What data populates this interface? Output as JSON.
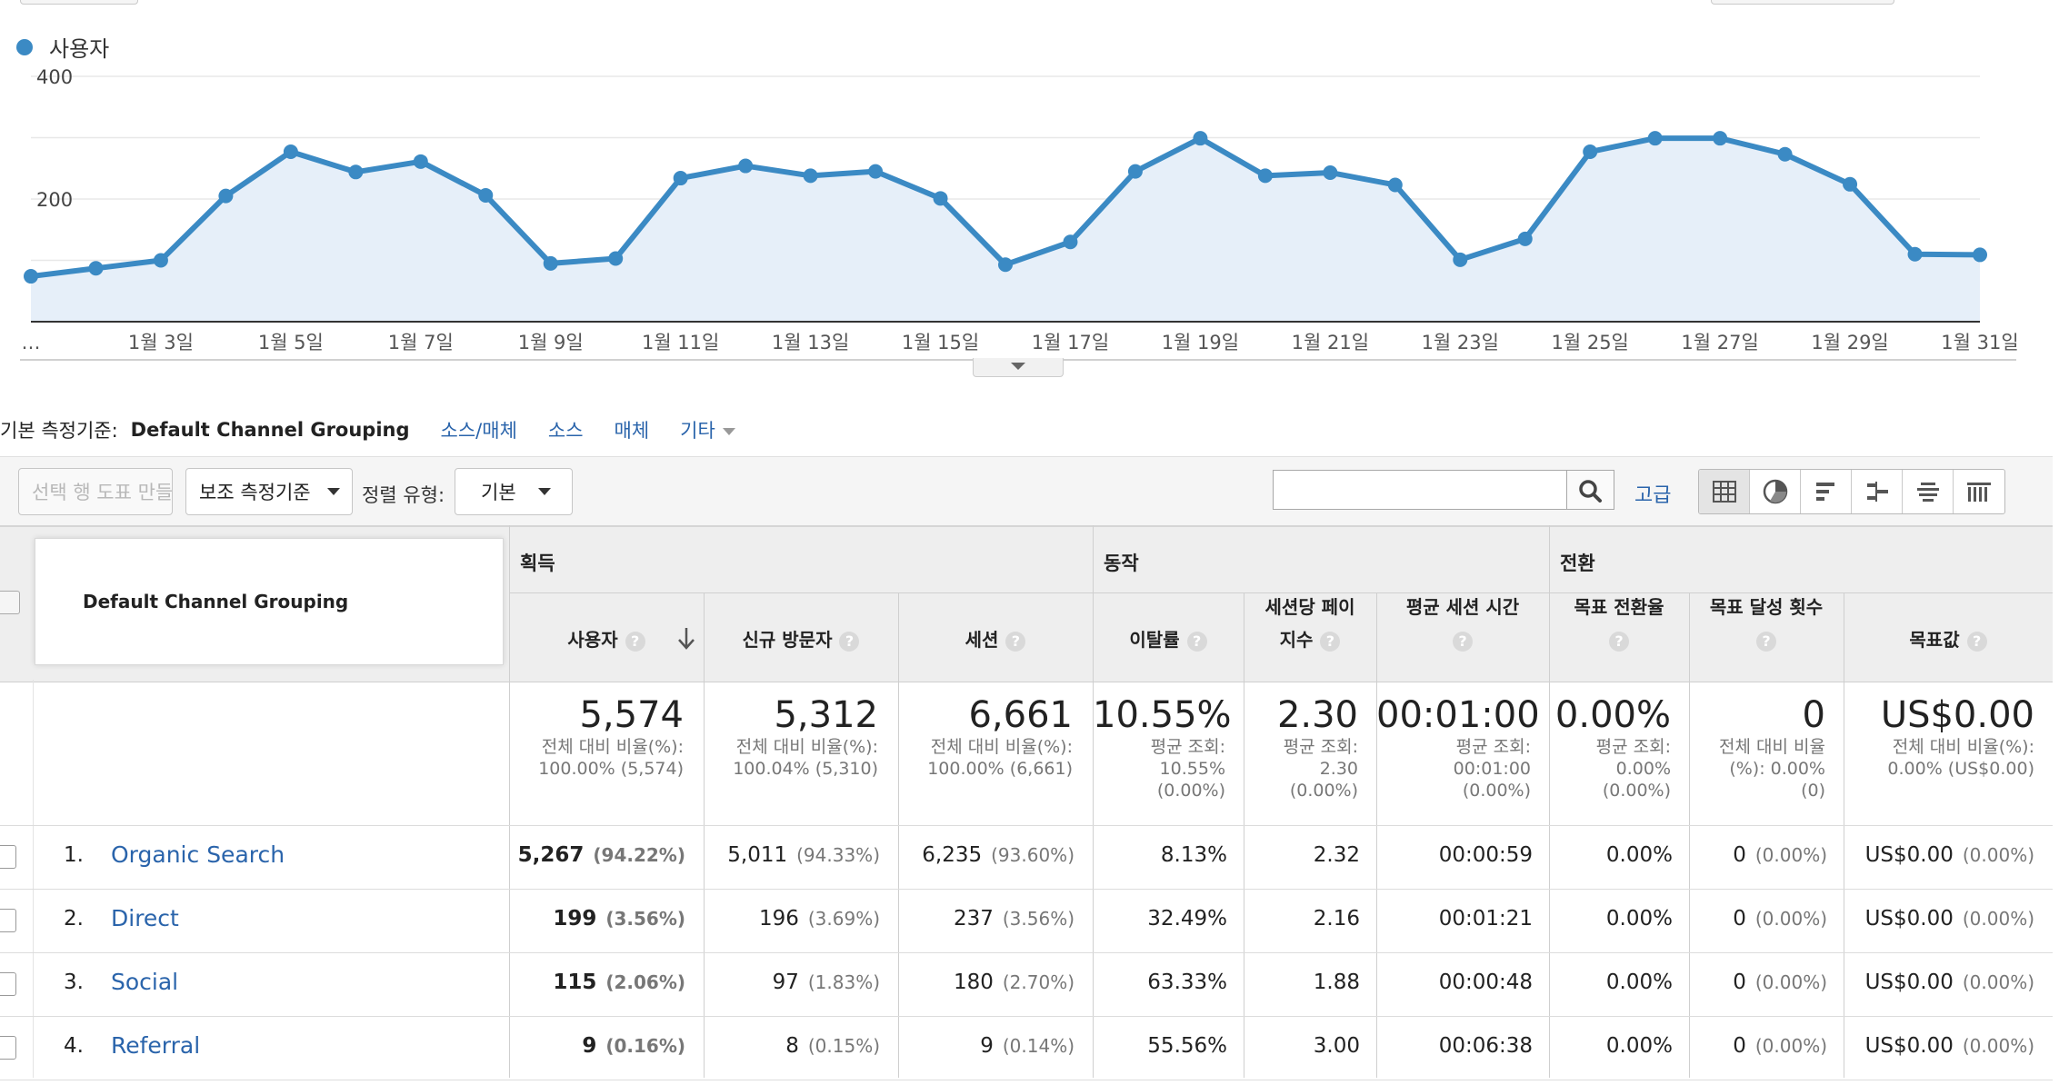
{
  "legend": {
    "label": "사용자",
    "color": "#3b8ac4"
  },
  "chart_data": {
    "type": "area",
    "series": [
      {
        "name": "사용자",
        "values": [
          74,
          87,
          100,
          205,
          277,
          244,
          261,
          206,
          95,
          103,
          234,
          254,
          238,
          245,
          201,
          93,
          130,
          245,
          299,
          238,
          243,
          223,
          101,
          135,
          277,
          299,
          299,
          273,
          224,
          110,
          109
        ]
      }
    ],
    "x": [
      "1월 1일",
      "1월 2일",
      "1월 3일",
      "1월 4일",
      "1월 5일",
      "1월 6일",
      "1월 7일",
      "1월 8일",
      "1월 9일",
      "1월 10일",
      "1월 11일",
      "1월 12일",
      "1월 13일",
      "1월 14일",
      "1월 15일",
      "1월 16일",
      "1월 17일",
      "1월 18일",
      "1월 19일",
      "1월 20일",
      "1월 21일",
      "1월 22일",
      "1월 23일",
      "1월 24일",
      "1월 25일",
      "1월 26일",
      "1월 27일",
      "1월 28일",
      "1월 29일",
      "1월 30일",
      "1월 31일"
    ],
    "xtick_labels": [
      "…",
      "1월 3일",
      "1월 5일",
      "1월 7일",
      "1월 9일",
      "1월 11일",
      "1월 13일",
      "1월 15일",
      "1월 17일",
      "1월 19일",
      "1월 21일",
      "1월 23일",
      "1월 25일",
      "1월 27일",
      "1월 29일",
      "1월 31일"
    ],
    "ytick_labels": [
      "400",
      "200"
    ],
    "yticks": [
      400,
      200
    ],
    "ylim": [
      0,
      400
    ],
    "grid": true,
    "line_color": "#3b8ac4",
    "fill_color": "#e6eff9"
  },
  "dimensions": {
    "label": "기본 측정기준:",
    "current": "Default Channel Grouping",
    "links": [
      "소스/매체",
      "소스",
      "매체"
    ],
    "more": "기타"
  },
  "toolbar": {
    "plot_rows": "선택 행 도표 만들기",
    "secondary_dim": "보조 측정기준",
    "sort_label": "정렬 유형:",
    "sort_value": "기본",
    "search_placeholder": "",
    "advanced": "고급"
  },
  "table": {
    "dim_header": "Default Channel Grouping",
    "groups": {
      "acquisition": "획득",
      "behavior": "동작",
      "conversion": "전환"
    },
    "columns": {
      "users": "사용자",
      "new_users": "신규 방문자",
      "sessions": "세션",
      "bounce": "이탈률",
      "pages_l1": "세션당 페이",
      "pages_l2": "지수",
      "duration": "평균 세션 시간",
      "goal_rate": "목표 전환율",
      "goal_completions": "목표 달성 횟수",
      "goal_value": "목표값"
    },
    "help_glyph": "?",
    "totals": {
      "users": {
        "value": "5,574",
        "l1": "전체 대비 비율(%):",
        "l2": "100.00% (5,574)"
      },
      "new_users": {
        "value": "5,312",
        "l1": "전체 대비 비율(%):",
        "l2": "100.04% (5,310)"
      },
      "sessions": {
        "value": "6,661",
        "l1": "전체 대비 비율(%):",
        "l2": "100.00% (6,661)"
      },
      "bounce": {
        "value": "10.55%",
        "l1": "평균 조회:",
        "l2": "10.55%",
        "l3": "(0.00%)"
      },
      "pages": {
        "value": "2.30",
        "l1": "평균 조회:",
        "l2": "2.30",
        "l3": "(0.00%)"
      },
      "duration": {
        "value": "00:01:00",
        "l1": "평균 조회:",
        "l2": "00:01:00",
        "l3": "(0.00%)"
      },
      "goal_rate": {
        "value": "0.00%",
        "l1": "평균 조회:",
        "l2": "0.00%",
        "l3": "(0.00%)"
      },
      "goal_completions": {
        "value": "0",
        "l1": "전체 대비 비율",
        "l2": "(%): 0.00%",
        "l3": "(0)"
      },
      "goal_value": {
        "value": "US$0.00",
        "l1": "전체 대비 비율(%):",
        "l2": "0.00% (US$0.00)"
      }
    },
    "rows": [
      {
        "num": "1.",
        "name": "Organic Search",
        "users": "5,267",
        "users_pct": "(94.22%)",
        "new_users": "5,011",
        "new_users_pct": "(94.33%)",
        "sessions": "6,235",
        "sessions_pct": "(93.60%)",
        "bounce": "8.13%",
        "pages": "2.32",
        "duration": "00:00:59",
        "goal_rate": "0.00%",
        "goal_completions": "0",
        "goal_completions_pct": "(0.00%)",
        "goal_value": "US$0.00",
        "goal_value_pct": "(0.00%)"
      },
      {
        "num": "2.",
        "name": "Direct",
        "users": "199",
        "users_pct": "(3.56%)",
        "new_users": "196",
        "new_users_pct": "(3.69%)",
        "sessions": "237",
        "sessions_pct": "(3.56%)",
        "bounce": "32.49%",
        "pages": "2.16",
        "duration": "00:01:21",
        "goal_rate": "0.00%",
        "goal_completions": "0",
        "goal_completions_pct": "(0.00%)",
        "goal_value": "US$0.00",
        "goal_value_pct": "(0.00%)"
      },
      {
        "num": "3.",
        "name": "Social",
        "users": "115",
        "users_pct": "(2.06%)",
        "new_users": "97",
        "new_users_pct": "(1.83%)",
        "sessions": "180",
        "sessions_pct": "(2.70%)",
        "bounce": "63.33%",
        "pages": "1.88",
        "duration": "00:00:48",
        "goal_rate": "0.00%",
        "goal_completions": "0",
        "goal_completions_pct": "(0.00%)",
        "goal_value": "US$0.00",
        "goal_value_pct": "(0.00%)"
      },
      {
        "num": "4.",
        "name": "Referral",
        "users": "9",
        "users_pct": "(0.16%)",
        "new_users": "8",
        "new_users_pct": "(0.15%)",
        "sessions": "9",
        "sessions_pct": "(0.14%)",
        "bounce": "55.56%",
        "pages": "3.00",
        "duration": "00:06:38",
        "goal_rate": "0.00%",
        "goal_completions": "0",
        "goal_completions_pct": "(0.00%)",
        "goal_value": "US$0.00",
        "goal_value_pct": "(0.00%)"
      }
    ]
  }
}
